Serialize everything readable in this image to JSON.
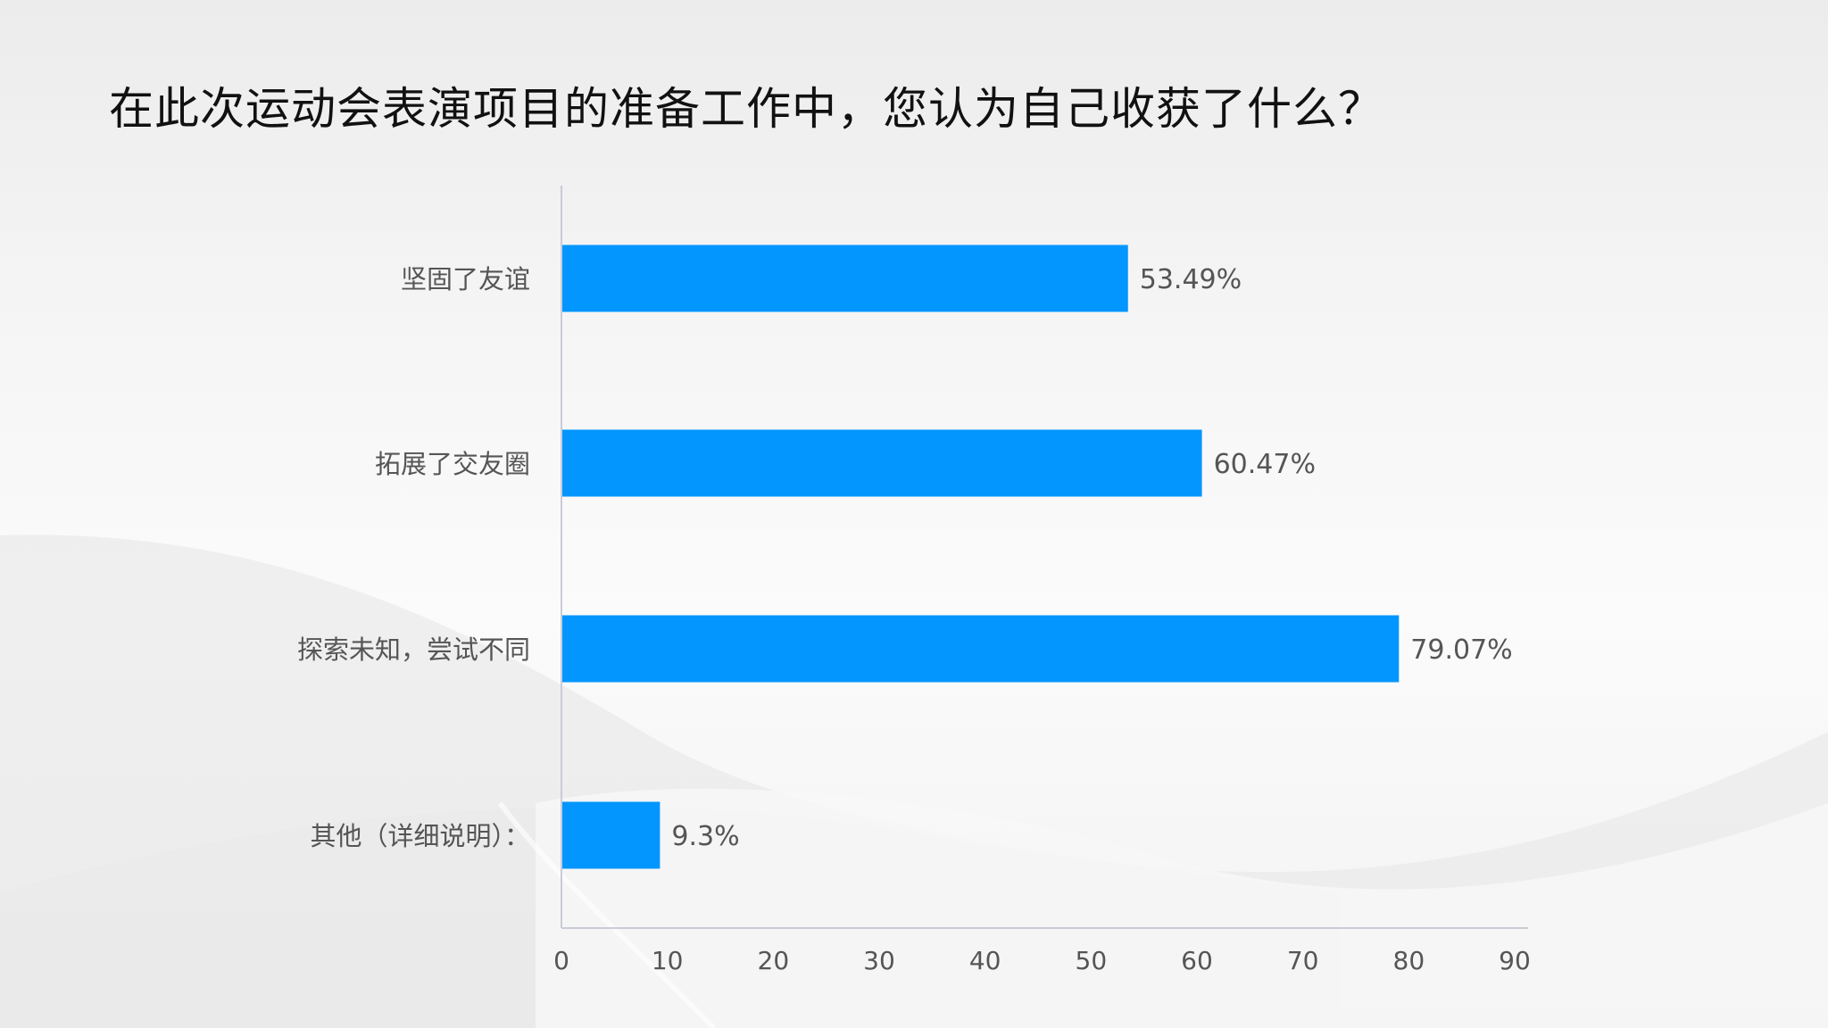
{
  "title": "在此次运动会表演项目的准备工作中，您认为自己收获了什么？",
  "colors": {
    "bar": "#0396FF",
    "axis": "#C9CCD6",
    "label": "#555555",
    "title": "#111111"
  },
  "chart_data": {
    "type": "bar",
    "orientation": "horizontal",
    "title": "在此次运动会表演项目的准备工作中，您认为自己收获了什么？",
    "xlabel": "",
    "ylabel": "",
    "categories": [
      "坚固了友谊",
      "拓展了交友圈",
      "探索未知，尝试不同",
      "其他（详细说明）："
    ],
    "values": [
      53.49,
      60.47,
      79.07,
      9.3
    ],
    "value_labels": [
      "53.49%",
      "60.47%",
      "79.07%",
      "9.3%"
    ],
    "xlim": [
      0,
      90
    ],
    "xticks": [
      0,
      10,
      20,
      30,
      40,
      50,
      60,
      70,
      80,
      90
    ],
    "xtick_labels": [
      "0",
      "10",
      "20",
      "30",
      "40",
      "50",
      "60",
      "70",
      "80",
      "90"
    ],
    "grid": false,
    "legend": "none"
  }
}
